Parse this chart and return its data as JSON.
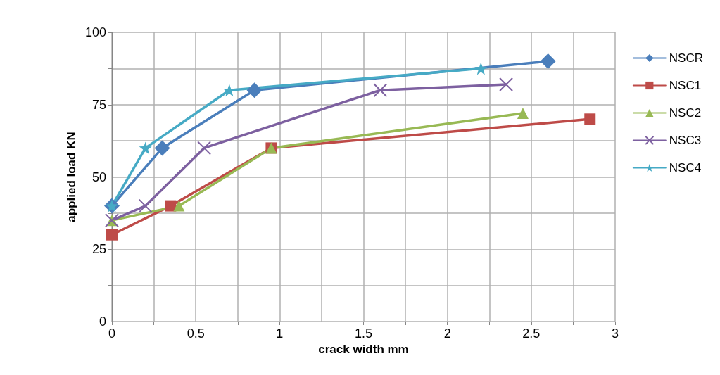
{
  "chart_data": {
    "type": "line",
    "xlabel": "crack width mm",
    "ylabel": "applied load KN",
    "xlim": [
      0,
      3
    ],
    "xticks": [
      0,
      {
        "value": 0.25,
        "label": null
      },
      0.5,
      {
        "value": 0.75,
        "label": null
      },
      1,
      {
        "value": 1.25,
        "label": null
      },
      1.5,
      {
        "value": 1.75,
        "label": null
      },
      2,
      {
        "value": 2.25,
        "label": null
      },
      2.5,
      {
        "value": 2.75,
        "label": null
      },
      3
    ],
    "ylim": [
      0,
      100
    ],
    "yticks": [
      0,
      {
        "value": 12.5,
        "label": null
      },
      25,
      {
        "value": 37.5,
        "label": null
      },
      50,
      {
        "value": 62.5,
        "label": null
      },
      75,
      {
        "value": 87.5,
        "label": null
      },
      100
    ],
    "grid": true,
    "legend": "right",
    "line_style": "solid",
    "series": [
      {
        "name": "NSCR",
        "color": "#4a7ebb",
        "marker": "diamond",
        "x": [
          0,
          0.3,
          0.85,
          2.6
        ],
        "values": [
          40,
          60,
          80,
          90
        ]
      },
      {
        "name": "NSC1",
        "color": "#be4b48",
        "marker": "square",
        "x": [
          0,
          0.35,
          0.95,
          2.85
        ],
        "values": [
          30,
          40,
          60,
          70
        ]
      },
      {
        "name": "NSC2",
        "color": "#98b954",
        "marker": "triangle",
        "x": [
          0,
          0.4,
          0.95,
          2.45
        ],
        "values": [
          35,
          40,
          60,
          72
        ]
      },
      {
        "name": "NSC3",
        "color": "#7d60a0",
        "marker": "cross",
        "x": [
          0,
          0.2,
          0.55,
          1.6,
          2.35
        ],
        "values": [
          35,
          40,
          60,
          80,
          82
        ]
      },
      {
        "name": "NSC4",
        "color": "#46aac5",
        "marker": "star",
        "x": [
          0,
          0.2,
          0.7,
          2.2
        ],
        "values": [
          40,
          60,
          80,
          87.5
        ]
      }
    ]
  }
}
